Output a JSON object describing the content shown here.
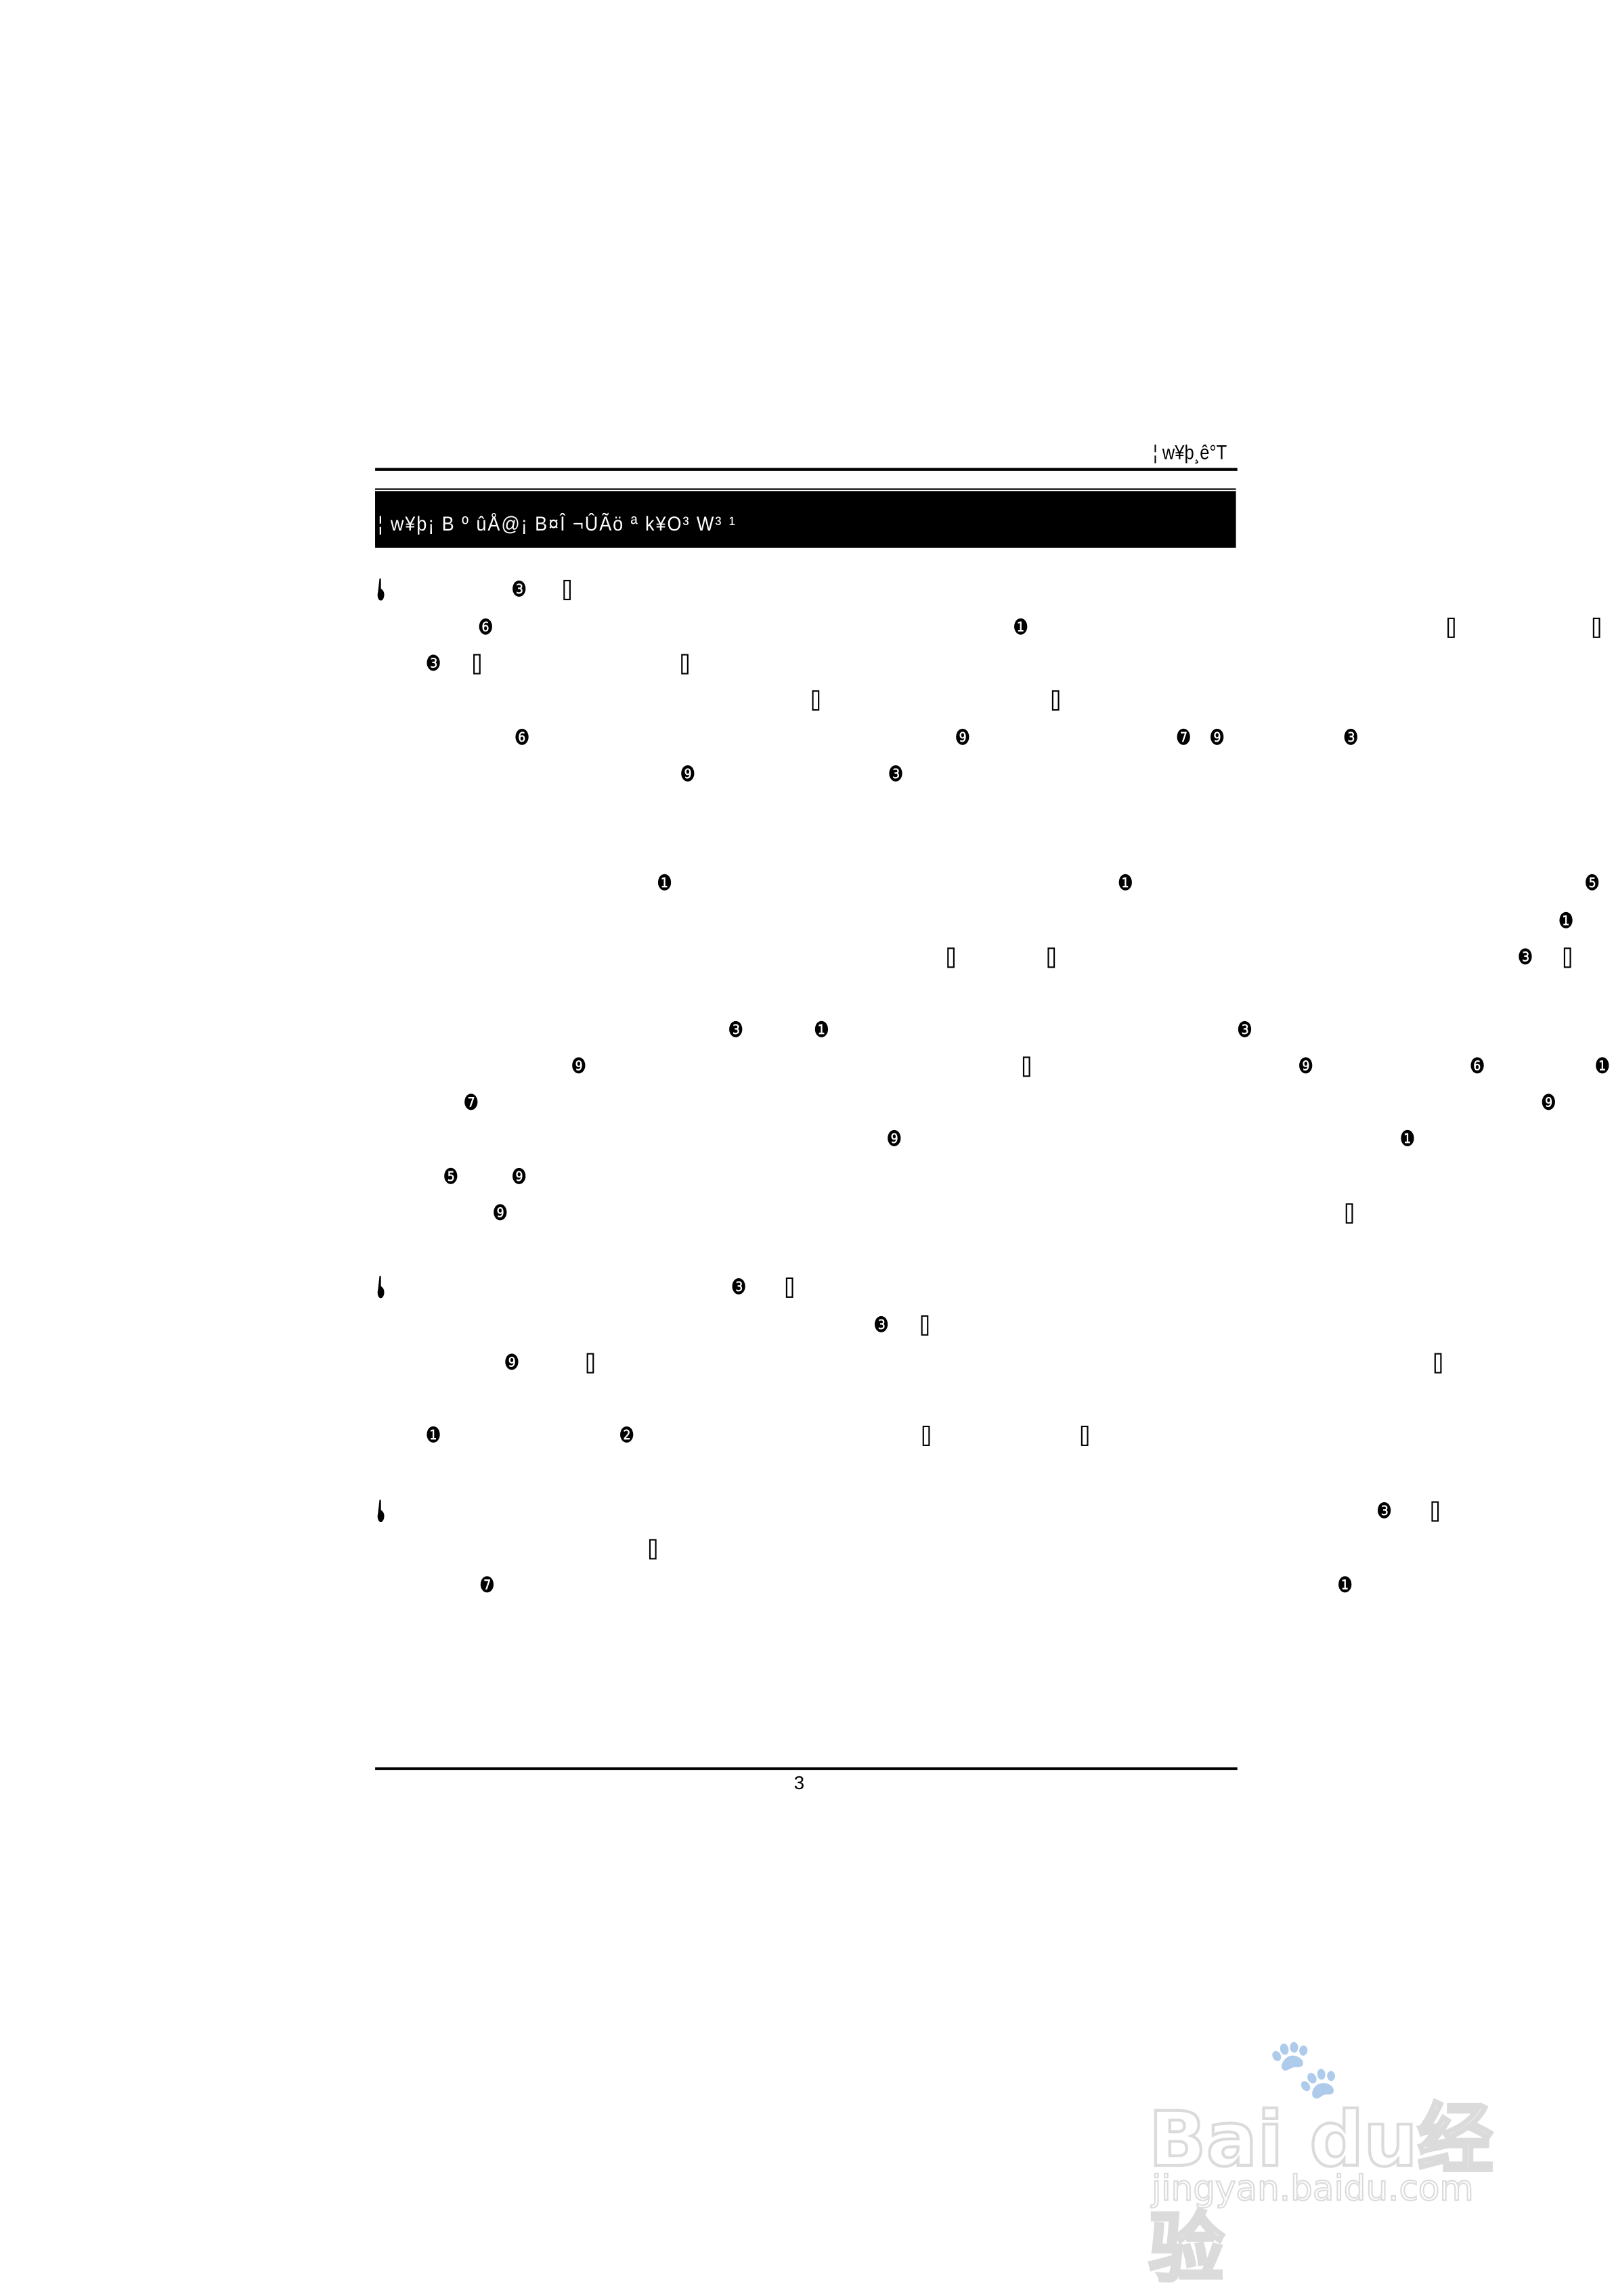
{
  "header": {
    "running_title": "¦ w¥þ¸ê°T"
  },
  "section_bar": {
    "title": "¦ w¥þ¡ B º ûÅ@¡ B¤Î ¬ÛÃö ª k¥O³ W³ ¹"
  },
  "body": {
    "glyphs": [
      "☛",
      "❸",
      "▯",
      "❻",
      "❶",
      "▯",
      "▯",
      "❸",
      "▯",
      "▯",
      "▯",
      "▯",
      "❻",
      "❾",
      "❼",
      "❾",
      "❸",
      "❾",
      "❸",
      "❶",
      "❶",
      "❺",
      "❶",
      "▯",
      "▯",
      "❸",
      "▯",
      "❸",
      "❶",
      "❸",
      "❾",
      "▯",
      "❾",
      "❻",
      "❶",
      "❼",
      "❾",
      "❾",
      "❶",
      "❺",
      "❾",
      "❾",
      "▯",
      "☛",
      "❸",
      "▯",
      "❸",
      "▯",
      "❾",
      "▯",
      "▯",
      "❶",
      "❷",
      "▯",
      "▯",
      "☛",
      "❸",
      "▯",
      "▯",
      "❼",
      "❶"
    ]
  },
  "footer": {
    "page_number": "3"
  },
  "watermark": {
    "logo": "Baidu经验",
    "url": "jingyan.baidu.com"
  }
}
